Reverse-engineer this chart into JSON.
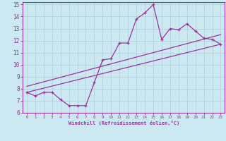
{
  "xlabel": "Windchill (Refroidissement éolien,°C)",
  "ylabel": "",
  "xlim": [
    -0.5,
    23.5
  ],
  "ylim": [
    6,
    15.2
  ],
  "xticks": [
    0,
    1,
    2,
    3,
    4,
    5,
    6,
    7,
    8,
    9,
    10,
    11,
    12,
    13,
    14,
    15,
    16,
    17,
    18,
    19,
    20,
    21,
    22,
    23
  ],
  "yticks": [
    6,
    7,
    8,
    9,
    10,
    11,
    12,
    13,
    14,
    15
  ],
  "background_color": "#cce8f0",
  "grid_color": "#aacfdb",
  "line_color": "#993399",
  "line1_x": [
    0,
    1,
    2,
    3,
    4,
    5,
    6,
    7,
    8,
    9,
    10,
    11,
    12,
    13,
    14,
    15,
    16,
    17,
    18,
    19,
    20,
    21,
    22,
    23
  ],
  "line1_y": [
    7.7,
    7.4,
    7.7,
    7.7,
    7.1,
    6.6,
    6.6,
    6.6,
    8.5,
    10.4,
    10.5,
    11.8,
    11.8,
    13.8,
    14.3,
    15.0,
    12.1,
    13.0,
    12.9,
    13.4,
    12.8,
    12.2,
    12.1,
    11.7
  ],
  "line2_x": [
    0,
    23
  ],
  "line2_y": [
    7.7,
    11.7
  ],
  "line3_x": [
    0,
    23
  ],
  "line3_y": [
    8.2,
    12.5
  ]
}
